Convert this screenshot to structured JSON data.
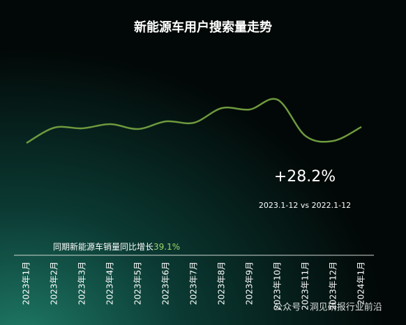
{
  "chart_data": {
    "type": "line",
    "title": "新能源车用户搜索量走势",
    "categories": [
      "2023年1月",
      "2023年2月",
      "2023年3月",
      "2023年4月",
      "2023年5月",
      "2023年6月",
      "2023年7月",
      "2023年8月",
      "2023年9月",
      "2023年10月",
      "2023年11月",
      "2023年12月",
      "2024年1月"
    ],
    "series": [
      {
        "color": "#6e9a3e",
        "values": [
          45,
          67,
          66,
          72,
          65,
          76,
          74,
          95,
          93,
          107,
          55,
          48,
          68
        ]
      }
    ],
    "ylim": [
      0,
      120
    ],
    "annotations": {
      "growth": "+28.2%",
      "period": "2023.1-12 vs 2022.1-12",
      "sales_note_label": "同期新能源车销量同比增长",
      "sales_note_value": "39.1%"
    },
    "watermark": "公众号 · 洞见研报行业前沿"
  }
}
